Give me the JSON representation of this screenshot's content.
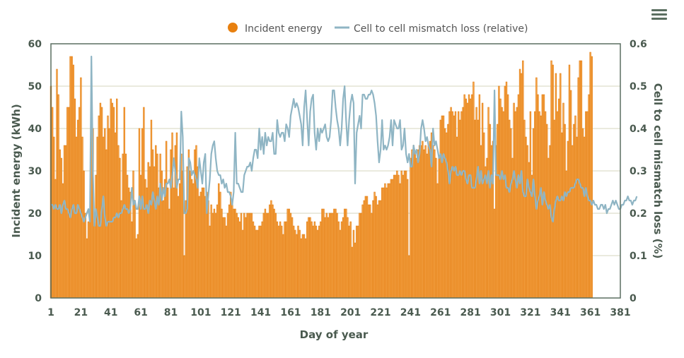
{
  "menu": {
    "icon": "hamburger-menu-icon"
  },
  "chart_data": {
    "type": "bar+line",
    "title": "",
    "legend": {
      "placement": "top-center",
      "items": [
        {
          "name": "Incident energy",
          "marker": "circle",
          "color": "#e8800f"
        },
        {
          "name": "Cell to cell mismatch loss (relative)",
          "marker": "line",
          "color": "#8fb5c4"
        }
      ]
    },
    "xlabel": "Day of year",
    "ylabel": "Incident energy (kWh)",
    "y2label": "Cell to cell mismatch loss (%)",
    "xlim": [
      1,
      381
    ],
    "ylim": [
      0,
      60
    ],
    "y2lim": [
      0,
      0.6
    ],
    "xticks": [
      "1",
      "21",
      "41",
      "61",
      "81",
      "101",
      "121",
      "141",
      "161",
      "181",
      "201",
      "221",
      "241",
      "261",
      "281",
      "301",
      "321",
      "341",
      "361",
      "381"
    ],
    "yticks": [
      "0",
      "10",
      "20",
      "30",
      "40",
      "50",
      "60"
    ],
    "y2ticks": [
      "0",
      "0.1",
      "0.2",
      "0.3",
      "0.4",
      "0.5",
      "0.6"
    ],
    "grid": true,
    "colors": {
      "bar": "#f5a54a",
      "bar_edge": "#e27a0c",
      "line": "#8fb5c4",
      "grid": "#e4e4d4",
      "axis": "#5a6e60",
      "text": "#4a5a4f"
    },
    "series": [
      {
        "name": "Incident energy",
        "type": "bar",
        "axis": "left",
        "x_start": 1,
        "values": [
          50,
          45,
          38,
          28,
          54,
          48,
          35,
          33,
          27,
          36,
          36,
          45,
          45,
          57,
          57,
          55,
          47,
          38,
          42,
          45,
          52,
          38,
          30,
          20,
          14,
          18,
          20,
          50,
          40,
          20,
          29,
          38,
          43,
          46,
          45,
          38,
          40,
          35,
          43,
          40,
          47,
          46,
          45,
          39,
          47,
          36,
          33,
          23,
          34,
          45,
          34,
          29,
          26,
          25,
          18,
          30,
          23,
          14,
          15,
          40,
          29,
          40,
          45,
          28,
          26,
          32,
          31,
          42,
          35,
          31,
          36,
          34,
          26,
          34,
          30,
          23,
          28,
          37,
          26,
          21,
          35,
          39,
          26,
          36,
          39,
          24,
          27,
          34,
          30,
          10,
          23,
          31,
          35,
          30,
          28,
          27,
          35,
          36,
          31,
          24,
          25,
          26,
          26,
          24,
          25,
          23,
          17,
          22,
          20,
          21,
          20,
          22,
          27,
          25,
          21,
          19,
          19,
          17,
          20,
          22,
          25,
          23,
          21,
          21,
          20,
          19,
          18,
          20,
          16,
          20,
          19,
          20,
          20,
          20,
          20,
          18,
          17,
          16,
          16,
          17,
          17,
          18,
          20,
          21,
          20,
          20,
          22,
          23,
          22,
          21,
          20,
          18,
          17,
          18,
          17,
          15,
          18,
          18,
          21,
          21,
          20,
          19,
          17,
          16,
          15,
          17,
          16,
          14,
          15,
          15,
          14,
          18,
          19,
          19,
          18,
          17,
          18,
          17,
          16,
          17,
          18,
          21,
          21,
          19,
          20,
          19,
          20,
          20,
          20,
          21,
          21,
          20,
          18,
          16,
          18,
          19,
          21,
          21,
          19,
          17,
          18,
          12,
          16,
          13,
          17,
          17,
          20,
          20,
          22,
          23,
          24,
          24,
          22,
          22,
          20,
          23,
          25,
          24,
          22,
          23,
          23,
          26,
          26,
          27,
          26,
          27,
          27,
          28,
          28,
          29,
          29,
          30,
          29,
          27,
          30,
          29,
          30,
          30,
          28,
          10,
          33,
          35,
          36,
          34,
          33,
          35,
          36,
          36,
          37,
          35,
          36,
          34,
          36,
          37,
          39,
          36,
          35,
          33,
          27,
          33,
          42,
          43,
          43,
          40,
          39,
          41,
          44,
          45,
          44,
          43,
          44,
          38,
          44,
          42,
          44,
          45,
          48,
          47,
          46,
          48,
          47,
          48,
          51,
          42,
          45,
          42,
          48,
          36,
          46,
          39,
          31,
          33,
          45,
          41,
          36,
          37,
          21,
          36,
          41,
          50,
          47,
          45,
          44,
          50,
          51,
          48,
          42,
          40,
          33,
          46,
          44,
          45,
          48,
          54,
          53,
          56,
          42,
          38,
          36,
          32,
          44,
          29,
          40,
          44,
          52,
          48,
          44,
          43,
          48,
          48,
          44,
          41,
          33,
          36,
          56,
          55,
          42,
          53,
          44,
          47,
          53,
          39,
          46,
          41,
          30,
          37,
          55,
          49,
          36,
          41,
          43,
          38,
          52,
          56,
          56,
          40,
          38,
          44,
          44,
          48,
          58,
          57
        ]
      },
      {
        "name": "Cell to cell mismatch loss (relative)",
        "type": "line",
        "axis": "right",
        "x_start": 1,
        "values": [
          0.22,
          0.22,
          0.21,
          0.22,
          0.21,
          0.21,
          0.22,
          0.2,
          0.22,
          0.23,
          0.21,
          0.21,
          0.2,
          0.19,
          0.21,
          0.22,
          0.2,
          0.2,
          0.22,
          0.21,
          0.2,
          0.19,
          0.18,
          0.19,
          0.2,
          0.21,
          0.18,
          0.57,
          0.3,
          0.17,
          0.21,
          0.19,
          0.17,
          0.17,
          0.21,
          0.24,
          0.19,
          0.17,
          0.18,
          0.18,
          0.18,
          0.18,
          0.19,
          0.19,
          0.2,
          0.19,
          0.2,
          0.2,
          0.21,
          0.22,
          0.21,
          0.21,
          0.2,
          0.21,
          0.26,
          0.22,
          0.23,
          0.21,
          0.21,
          0.24,
          0.21,
          0.24,
          0.21,
          0.21,
          0.22,
          0.2,
          0.23,
          0.22,
          0.25,
          0.23,
          0.21,
          0.24,
          0.22,
          0.27,
          0.23,
          0.26,
          0.24,
          0.27,
          0.27,
          0.28,
          0.26,
          0.29,
          0.33,
          0.3,
          0.26,
          0.28,
          0.28,
          0.44,
          0.38,
          0.2,
          0.2,
          0.21,
          0.33,
          0.32,
          0.29,
          0.3,
          0.29,
          0.28,
          0.26,
          0.33,
          0.3,
          0.27,
          0.32,
          0.34,
          0.2,
          0.24,
          0.28,
          0.34,
          0.36,
          0.37,
          0.33,
          0.3,
          0.29,
          0.29,
          0.27,
          0.28,
          0.26,
          0.27,
          0.25,
          0.25,
          0.24,
          0.22,
          0.25,
          0.39,
          0.27,
          0.27,
          0.26,
          0.25,
          0.25,
          0.29,
          0.3,
          0.31,
          0.31,
          0.32,
          0.3,
          0.33,
          0.35,
          0.35,
          0.33,
          0.4,
          0.35,
          0.38,
          0.34,
          0.39,
          0.36,
          0.38,
          0.37,
          0.37,
          0.39,
          0.34,
          0.34,
          0.42,
          0.39,
          0.38,
          0.39,
          0.39,
          0.37,
          0.41,
          0.4,
          0.38,
          0.43,
          0.45,
          0.47,
          0.45,
          0.46,
          0.45,
          0.43,
          0.41,
          0.36,
          0.45,
          0.49,
          0.42,
          0.36,
          0.44,
          0.47,
          0.48,
          0.39,
          0.35,
          0.4,
          0.37,
          0.4,
          0.39,
          0.4,
          0.41,
          0.38,
          0.37,
          0.38,
          0.42,
          0.49,
          0.49,
          0.45,
          0.42,
          0.4,
          0.36,
          0.4,
          0.47,
          0.5,
          0.42,
          0.36,
          0.42,
          0.46,
          0.48,
          0.46,
          0.27,
          0.39,
          0.41,
          0.43,
          0.4,
          0.48,
          0.48,
          0.47,
          0.47,
          0.48,
          0.48,
          0.49,
          0.48,
          0.46,
          0.43,
          0.37,
          0.32,
          0.35,
          0.42,
          0.35,
          0.36,
          0.35,
          0.36,
          0.38,
          0.42,
          0.36,
          0.42,
          0.41,
          0.4,
          0.4,
          0.42,
          0.35,
          0.36,
          0.4,
          0.34,
          0.32,
          0.34,
          0.31,
          0.31,
          0.36,
          0.34,
          0.35,
          0.32,
          0.34,
          0.4,
          0.42,
          0.4,
          0.37,
          0.38,
          0.36,
          0.35,
          0.31,
          0.4,
          0.36,
          0.37,
          0.35,
          0.33,
          0.34,
          0.32,
          0.34,
          0.33,
          0.32,
          0.3,
          0.27,
          0.3,
          0.31,
          0.3,
          0.31,
          0.29,
          0.29,
          0.3,
          0.29,
          0.3,
          0.3,
          0.28,
          0.27,
          0.29,
          0.29,
          0.26,
          0.26,
          0.26,
          0.28,
          0.31,
          0.27,
          0.3,
          0.27,
          0.28,
          0.29,
          0.27,
          0.3,
          0.26,
          0.29,
          0.27,
          0.49,
          0.29,
          0.29,
          0.29,
          0.28,
          0.3,
          0.28,
          0.29,
          0.26,
          0.26,
          0.25,
          0.27,
          0.28,
          0.3,
          0.28,
          0.26,
          0.29,
          0.27,
          0.3,
          0.25,
          0.24,
          0.24,
          0.28,
          0.26,
          0.25,
          0.24,
          0.28,
          0.24,
          0.21,
          0.23,
          0.24,
          0.26,
          0.22,
          0.25,
          0.23,
          0.22,
          0.21,
          0.22,
          0.19,
          0.18,
          0.21,
          0.23,
          0.24,
          0.23,
          0.23,
          0.24,
          0.23,
          0.25,
          0.24,
          0.25,
          0.25,
          0.26,
          0.26,
          0.26,
          0.27,
          0.28,
          0.28,
          0.27,
          0.26,
          0.26,
          0.24,
          0.26,
          0.24,
          0.23,
          0.23,
          0.22,
          0.23,
          0.22,
          0.22,
          0.21,
          0.21,
          0.22,
          0.22,
          0.21,
          0.22,
          0.2,
          0.21,
          0.21,
          0.22,
          0.23,
          0.22,
          0.23,
          0.22,
          0.21,
          0.21,
          0.22,
          0.22,
          0.23,
          0.23,
          0.24,
          0.23,
          0.23,
          0.22,
          0.23,
          0.23,
          0.24
        ]
      }
    ]
  }
}
